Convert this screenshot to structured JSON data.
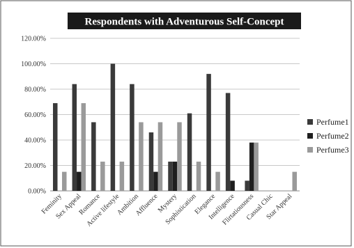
{
  "chart_data": {
    "type": "bar",
    "title": "Respondents with Adventurous Self-Concept",
    "xlabel": "",
    "ylabel": "",
    "ylim": [
      0,
      1.2
    ],
    "yticks": [
      "0.00%",
      "20.00%",
      "40.00%",
      "60.00%",
      "80.00%",
      "100.00%",
      "120.00%"
    ],
    "grid": true,
    "legend_position": "right",
    "categories": [
      "Feminity",
      "Sex Appeal",
      "Romance",
      "Active lifestyle",
      "Ambition",
      "Affluence",
      "Mystery",
      "Sophistication",
      "Elegance",
      "Intelligence",
      "Flirtatiousness",
      "Casual Chic",
      "Star Appeal"
    ],
    "series": [
      {
        "name": "Perfume1",
        "color": "#3a3a3a",
        "values": [
          0.69,
          0.84,
          0.54,
          1.0,
          0.84,
          0.46,
          0.23,
          0.61,
          0.92,
          0.77,
          0.08,
          0.0,
          0.0
        ]
      },
      {
        "name": "Perfume2",
        "color": "#1f1f1f",
        "values": [
          0.0,
          0.15,
          0.0,
          0.0,
          0.0,
          0.15,
          0.23,
          0.0,
          0.0,
          0.08,
          0.38,
          0.0,
          0.0
        ]
      },
      {
        "name": "Perfume3",
        "color": "#9a9a9a",
        "values": [
          0.15,
          0.69,
          0.23,
          0.23,
          0.54,
          0.54,
          0.54,
          0.23,
          0.15,
          0.0,
          0.38,
          0.0,
          0.15
        ]
      }
    ]
  }
}
